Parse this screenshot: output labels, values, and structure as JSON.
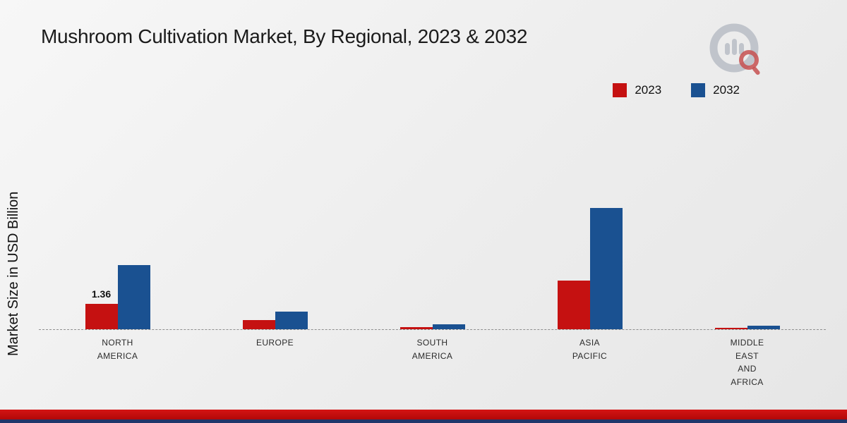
{
  "page": {
    "title": "Mushroom Cultivation Market, By Regional, 2023 & 2032",
    "y_axis_label": "Market Size in USD Billion"
  },
  "branding": {
    "logo_name": "market-research-future-logo"
  },
  "chart_data": {
    "type": "bar",
    "title": "Mushroom Cultivation Market, By Regional, 2023 & 2032",
    "xlabel": "",
    "ylabel": "Market Size in USD Billion",
    "ylim": [
      0,
      7
    ],
    "grid": "off",
    "baseline_style": "dashed",
    "legend_position": "top-right",
    "categories": [
      "NORTH AMERICA",
      "EUROPE",
      "SOUTH AMERICA",
      "ASIA PACIFIC",
      "MIDDLE EAST AND AFRICA"
    ],
    "category_lines": [
      [
        "NORTH",
        "AMERICA"
      ],
      [
        "EUROPE"
      ],
      [
        "SOUTH",
        "AMERICA"
      ],
      [
        "ASIA",
        "PACIFIC"
      ],
      [
        "MIDDLE",
        "EAST",
        "AND",
        "AFRICA"
      ]
    ],
    "series": [
      {
        "name": "2023",
        "color": "#c51111",
        "values": [
          1.36,
          0.5,
          0.1,
          2.6,
          0.07
        ]
      },
      {
        "name": "2032",
        "color": "#1a5191",
        "values": [
          3.42,
          0.95,
          0.25,
          6.5,
          0.2
        ]
      }
    ],
    "data_labels": [
      {
        "series": "2023",
        "category": "NORTH AMERICA",
        "value": "1.36"
      }
    ]
  }
}
